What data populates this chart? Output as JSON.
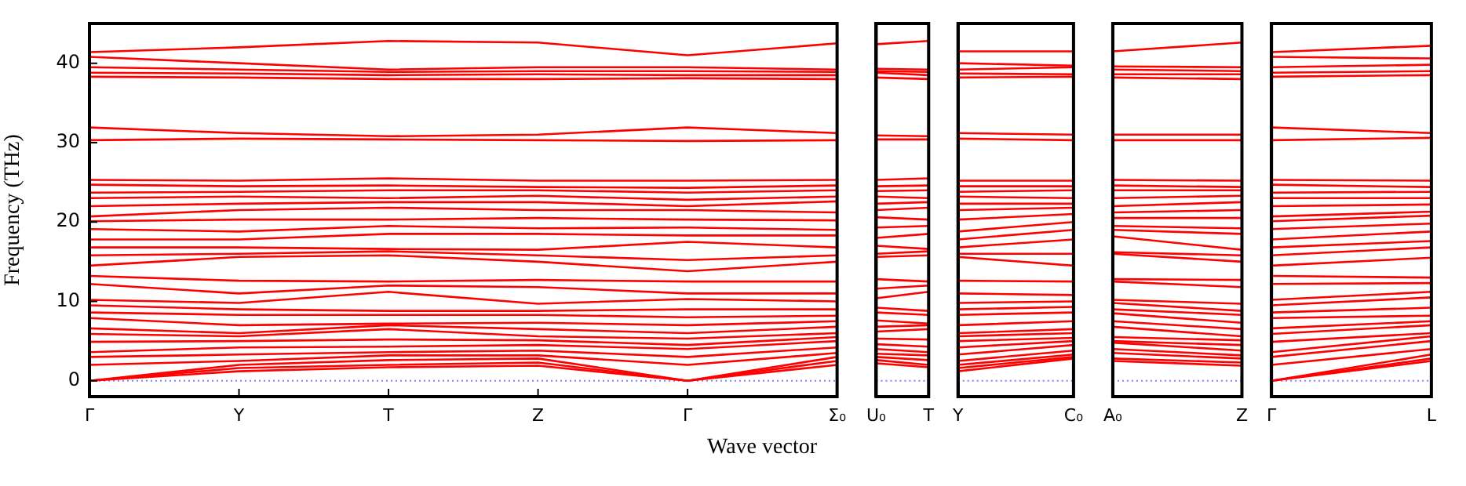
{
  "chart_data": [
    {
      "type": "line",
      "color": "#ff0000",
      "ylabel": "Frequency (THz)",
      "xlabel": "Wave vector",
      "categories": [
        "Γ",
        "Y",
        "T",
        "Z",
        "Γ",
        "Σ₀"
      ],
      "ylim": [
        -2,
        45
      ],
      "yticks": [
        0,
        10,
        20,
        30,
        40
      ],
      "marker": "none",
      "ref_lines": [
        {
          "axis": "y",
          "value": 0,
          "color": "#8080ff",
          "line_style": "dotted"
        }
      ],
      "series": [
        {
          "values": [
            0,
            1.2,
            1.7,
            1.9,
            0,
            2.0
          ]
        },
        {
          "values": [
            0,
            1.6,
            2.0,
            2.3,
            0,
            2.5
          ]
        },
        {
          "values": [
            0,
            2.0,
            2.6,
            2.8,
            0,
            3.0
          ]
        },
        {
          "values": [
            2.0,
            2.5,
            3.2,
            3.2,
            2.0,
            3.5
          ]
        },
        {
          "values": [
            3.0,
            3.3,
            3.6,
            3.8,
            3.0,
            4.2
          ]
        },
        {
          "values": [
            3.6,
            4.2,
            4.3,
            4.5,
            4.0,
            5.0
          ]
        },
        {
          "values": [
            4.9,
            5.0,
            5.2,
            5.1,
            4.5,
            5.5
          ]
        },
        {
          "values": [
            5.9,
            5.6,
            6.5,
            5.6,
            5.3,
            6.0
          ]
        },
        {
          "values": [
            6.6,
            6.0,
            7.0,
            6.5,
            6.0,
            6.8
          ]
        },
        {
          "values": [
            7.9,
            7.0,
            7.2,
            7.3,
            7.0,
            7.5
          ]
        },
        {
          "values": [
            8.6,
            8.3,
            8.3,
            8.3,
            8.0,
            8.2
          ]
        },
        {
          "values": [
            9.5,
            9.0,
            8.8,
            8.8,
            9.0,
            9.0
          ]
        },
        {
          "values": [
            10.2,
            9.8,
            11.2,
            9.7,
            10.3,
            10.0
          ]
        },
        {
          "values": [
            12.2,
            11.0,
            12.0,
            11.8,
            11.0,
            11.0
          ]
        },
        {
          "values": [
            13.2,
            12.6,
            12.5,
            12.7,
            12.5,
            12.5
          ]
        },
        {
          "values": [
            14.5,
            15.6,
            15.8,
            15.0,
            13.8,
            15.0
          ]
        },
        {
          "values": [
            15.8,
            16.0,
            16.3,
            15.8,
            15.2,
            15.8
          ]
        },
        {
          "values": [
            16.8,
            16.8,
            16.6,
            16.5,
            17.5,
            16.8
          ]
        },
        {
          "values": [
            17.8,
            17.8,
            18.5,
            18.5,
            18.3,
            18.3
          ]
        },
        {
          "values": [
            19.1,
            18.8,
            19.5,
            19.2,
            19.3,
            19.0
          ]
        },
        {
          "values": [
            20.1,
            20.3,
            20.3,
            20.5,
            20.3,
            20.2
          ]
        },
        {
          "values": [
            20.7,
            21.5,
            21.8,
            21.5,
            21.5,
            21.2
          ]
        },
        {
          "values": [
            22.0,
            22.3,
            22.5,
            22.5,
            22.0,
            22.6
          ]
        },
        {
          "values": [
            23.0,
            23.2,
            23.0,
            23.3,
            22.8,
            23.2
          ]
        },
        {
          "values": [
            23.7,
            23.8,
            24.0,
            24.0,
            23.7,
            24.0
          ]
        },
        {
          "values": [
            24.7,
            24.5,
            24.6,
            24.4,
            24.3,
            24.6
          ]
        },
        {
          "values": [
            25.3,
            25.2,
            25.5,
            25.2,
            25.2,
            25.3
          ]
        },
        {
          "values": [
            30.3,
            30.5,
            30.4,
            30.3,
            30.2,
            30.3
          ]
        },
        {
          "values": [
            31.9,
            31.2,
            30.8,
            31.0,
            31.9,
            31.2
          ]
        },
        {
          "values": [
            38.3,
            38.2,
            38.0,
            38.0,
            38.1,
            38.0
          ]
        },
        {
          "values": [
            38.8,
            38.7,
            38.5,
            38.6,
            38.5,
            38.5
          ]
        },
        {
          "values": [
            39.5,
            39.2,
            38.9,
            39.0,
            39.0,
            38.9
          ]
        },
        {
          "values": [
            40.8,
            40.0,
            39.2,
            39.5,
            39.5,
            39.2
          ]
        },
        {
          "values": [
            41.4,
            42.0,
            42.8,
            42.6,
            41.0,
            42.5
          ]
        }
      ]
    },
    {
      "type": "line",
      "color": "#ff0000",
      "categories": [
        "U₀",
        "T"
      ],
      "ylim": [
        -2,
        45
      ],
      "yticks": [
        0,
        10,
        20,
        30,
        40
      ],
      "tick_labels": "x",
      "marker": "none",
      "ref_lines": [
        {
          "axis": "y",
          "value": 0,
          "color": "#8080ff",
          "line_style": "dotted"
        }
      ],
      "series": [
        {
          "values": [
            2.2,
            1.7
          ]
        },
        {
          "values": [
            2.6,
            2.0
          ]
        },
        {
          "values": [
            3.0,
            2.6
          ]
        },
        {
          "values": [
            3.4,
            3.2
          ]
        },
        {
          "values": [
            4.0,
            3.6
          ]
        },
        {
          "values": [
            4.6,
            4.3
          ]
        },
        {
          "values": [
            5.3,
            5.2
          ]
        },
        {
          "values": [
            6.2,
            6.5
          ]
        },
        {
          "values": [
            6.8,
            7.0
          ]
        },
        {
          "values": [
            7.6,
            7.2
          ]
        },
        {
          "values": [
            8.6,
            8.3
          ]
        },
        {
          "values": [
            9.2,
            8.8
          ]
        },
        {
          "values": [
            10.4,
            11.2
          ]
        },
        {
          "values": [
            11.6,
            12.0
          ]
        },
        {
          "values": [
            12.8,
            12.5
          ]
        },
        {
          "values": [
            15.6,
            15.8
          ]
        },
        {
          "values": [
            16.0,
            16.3
          ]
        },
        {
          "values": [
            17.0,
            16.6
          ]
        },
        {
          "values": [
            18.0,
            18.5
          ]
        },
        {
          "values": [
            19.3,
            19.5
          ]
        },
        {
          "values": [
            20.6,
            20.3
          ]
        },
        {
          "values": [
            21.5,
            21.8
          ]
        },
        {
          "values": [
            22.3,
            22.5
          ]
        },
        {
          "values": [
            23.2,
            23.0
          ]
        },
        {
          "values": [
            23.9,
            24.0
          ]
        },
        {
          "values": [
            24.5,
            24.6
          ]
        },
        {
          "values": [
            25.3,
            25.5
          ]
        },
        {
          "values": [
            30.4,
            30.4
          ]
        },
        {
          "values": [
            30.9,
            30.8
          ]
        },
        {
          "values": [
            38.2,
            38.0
          ]
        },
        {
          "values": [
            38.8,
            38.5
          ]
        },
        {
          "values": [
            39.0,
            38.9
          ]
        },
        {
          "values": [
            39.3,
            39.2
          ]
        },
        {
          "values": [
            42.4,
            42.8
          ]
        }
      ]
    },
    {
      "type": "line",
      "color": "#ff0000",
      "categories": [
        "Y",
        "C₀"
      ],
      "ylim": [
        -2,
        45
      ],
      "yticks": [
        0,
        10,
        20,
        30,
        40
      ],
      "tick_labels": "x",
      "marker": "none",
      "ref_lines": [
        {
          "axis": "y",
          "value": 0,
          "color": "#8080ff",
          "line_style": "dotted"
        }
      ],
      "series": [
        {
          "values": [
            1.2,
            2.8
          ]
        },
        {
          "values": [
            1.6,
            3.0
          ]
        },
        {
          "values": [
            2.0,
            3.3
          ]
        },
        {
          "values": [
            2.5,
            3.8
          ]
        },
        {
          "values": [
            3.3,
            4.5
          ]
        },
        {
          "values": [
            4.2,
            5.0
          ]
        },
        {
          "values": [
            5.0,
            5.4
          ]
        },
        {
          "values": [
            5.6,
            6.0
          ]
        },
        {
          "values": [
            6.0,
            6.5
          ]
        },
        {
          "values": [
            7.0,
            7.5
          ]
        },
        {
          "values": [
            8.3,
            8.6
          ]
        },
        {
          "values": [
            9.0,
            9.3
          ]
        },
        {
          "values": [
            9.8,
            10.0
          ]
        },
        {
          "values": [
            11.0,
            10.8
          ]
        },
        {
          "values": [
            12.6,
            12.5
          ]
        },
        {
          "values": [
            15.6,
            14.5
          ]
        },
        {
          "values": [
            16.0,
            16.0
          ]
        },
        {
          "values": [
            16.8,
            17.8
          ]
        },
        {
          "values": [
            17.8,
            19.0
          ]
        },
        {
          "values": [
            18.8,
            20.0
          ]
        },
        {
          "values": [
            20.3,
            21.0
          ]
        },
        {
          "values": [
            21.5,
            21.8
          ]
        },
        {
          "values": [
            22.3,
            22.3
          ]
        },
        {
          "values": [
            23.2,
            23.0
          ]
        },
        {
          "values": [
            23.8,
            24.0
          ]
        },
        {
          "values": [
            24.5,
            24.5
          ]
        },
        {
          "values": [
            25.2,
            25.2
          ]
        },
        {
          "values": [
            30.5,
            30.3
          ]
        },
        {
          "values": [
            31.2,
            31.0
          ]
        },
        {
          "values": [
            38.2,
            38.3
          ]
        },
        {
          "values": [
            38.7,
            38.6
          ]
        },
        {
          "values": [
            39.2,
            39.5
          ]
        },
        {
          "values": [
            40.0,
            39.7
          ]
        },
        {
          "values": [
            41.5,
            41.5
          ]
        }
      ]
    },
    {
      "type": "line",
      "color": "#ff0000",
      "categories": [
        "A₀",
        "Z"
      ],
      "ylim": [
        -2,
        45
      ],
      "yticks": [
        0,
        10,
        20,
        30,
        40
      ],
      "tick_labels": "x",
      "marker": "none",
      "ref_lines": [
        {
          "axis": "y",
          "value": 0,
          "color": "#8080ff",
          "line_style": "dotted"
        }
      ],
      "series": [
        {
          "values": [
            2.5,
            1.9
          ]
        },
        {
          "values": [
            2.8,
            2.3
          ]
        },
        {
          "values": [
            3.5,
            2.8
          ]
        },
        {
          "values": [
            4.0,
            3.2
          ]
        },
        {
          "values": [
            4.8,
            3.8
          ]
        },
        {
          "values": [
            5.0,
            4.5
          ]
        },
        {
          "values": [
            5.5,
            5.1
          ]
        },
        {
          "values": [
            6.8,
            5.6
          ]
        },
        {
          "values": [
            7.5,
            6.5
          ]
        },
        {
          "values": [
            8.5,
            7.3
          ]
        },
        {
          "values": [
            9.0,
            8.3
          ]
        },
        {
          "values": [
            9.8,
            8.8
          ]
        },
        {
          "values": [
            10.2,
            9.7
          ]
        },
        {
          "values": [
            12.5,
            11.8
          ]
        },
        {
          "values": [
            12.8,
            12.7
          ]
        },
        {
          "values": [
            16.0,
            15.0
          ]
        },
        {
          "values": [
            16.2,
            15.8
          ]
        },
        {
          "values": [
            18.2,
            16.5
          ]
        },
        {
          "values": [
            19.0,
            18.5
          ]
        },
        {
          "values": [
            19.5,
            19.2
          ]
        },
        {
          "values": [
            20.5,
            20.5
          ]
        },
        {
          "values": [
            21.2,
            21.5
          ]
        },
        {
          "values": [
            22.0,
            22.5
          ]
        },
        {
          "values": [
            23.0,
            23.3
          ]
        },
        {
          "values": [
            24.0,
            24.0
          ]
        },
        {
          "values": [
            24.6,
            24.4
          ]
        },
        {
          "values": [
            25.3,
            25.2
          ]
        },
        {
          "values": [
            30.3,
            30.3
          ]
        },
        {
          "values": [
            31.0,
            31.0
          ]
        },
        {
          "values": [
            38.2,
            38.0
          ]
        },
        {
          "values": [
            38.6,
            38.6
          ]
        },
        {
          "values": [
            39.2,
            39.0
          ]
        },
        {
          "values": [
            39.6,
            39.5
          ]
        },
        {
          "values": [
            41.5,
            42.6
          ]
        }
      ]
    },
    {
      "type": "line",
      "color": "#ff0000",
      "categories": [
        "Γ",
        "L"
      ],
      "ylim": [
        -2,
        45
      ],
      "yticks": [
        0,
        10,
        20,
        30,
        40
      ],
      "tick_labels": "x",
      "marker": "none",
      "ref_lines": [
        {
          "axis": "y",
          "value": 0,
          "color": "#8080ff",
          "line_style": "dotted"
        }
      ],
      "series": [
        {
          "values": [
            0,
            2.5
          ]
        },
        {
          "values": [
            0,
            2.8
          ]
        },
        {
          "values": [
            0,
            3.3
          ]
        },
        {
          "values": [
            2.0,
            4.0
          ]
        },
        {
          "values": [
            3.0,
            5.0
          ]
        },
        {
          "values": [
            3.6,
            5.6
          ]
        },
        {
          "values": [
            4.9,
            6.0
          ]
        },
        {
          "values": [
            5.9,
            7.0
          ]
        },
        {
          "values": [
            6.6,
            7.5
          ]
        },
        {
          "values": [
            7.9,
            8.2
          ]
        },
        {
          "values": [
            8.6,
            9.2
          ]
        },
        {
          "values": [
            9.5,
            10.5
          ]
        },
        {
          "values": [
            10.2,
            11.2
          ]
        },
        {
          "values": [
            12.2,
            12.3
          ]
        },
        {
          "values": [
            13.2,
            13.0
          ]
        },
        {
          "values": [
            14.5,
            15.5
          ]
        },
        {
          "values": [
            15.8,
            16.8
          ]
        },
        {
          "values": [
            16.8,
            17.6
          ]
        },
        {
          "values": [
            17.8,
            18.8
          ]
        },
        {
          "values": [
            19.1,
            19.8
          ]
        },
        {
          "values": [
            20.1,
            20.8
          ]
        },
        {
          "values": [
            20.7,
            21.3
          ]
        },
        {
          "values": [
            22.0,
            22.2
          ]
        },
        {
          "values": [
            23.0,
            23.0
          ]
        },
        {
          "values": [
            23.7,
            23.8
          ]
        },
        {
          "values": [
            24.7,
            24.4
          ]
        },
        {
          "values": [
            25.3,
            25.2
          ]
        },
        {
          "values": [
            30.3,
            30.6
          ]
        },
        {
          "values": [
            31.9,
            31.2
          ]
        },
        {
          "values": [
            38.3,
            38.5
          ]
        },
        {
          "values": [
            38.8,
            39.0
          ]
        },
        {
          "values": [
            39.5,
            39.8
          ]
        },
        {
          "values": [
            40.8,
            40.6
          ]
        },
        {
          "values": [
            41.4,
            42.2
          ]
        }
      ]
    }
  ]
}
